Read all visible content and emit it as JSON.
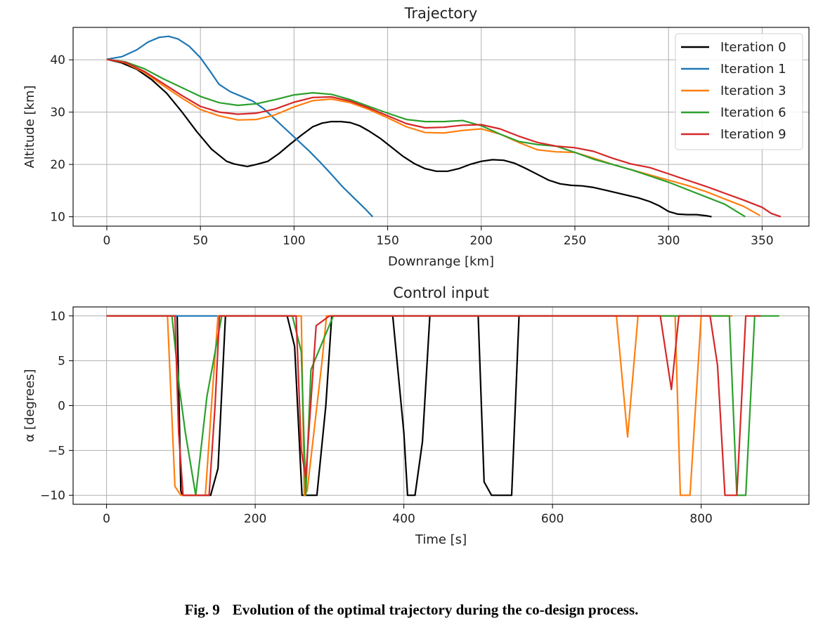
{
  "chart_data": [
    {
      "type": "line",
      "title": "Trajectory",
      "xlabel": "Downrange [km]",
      "ylabel": "Altitude [km]",
      "xlim": [
        -18,
        375
      ],
      "ylim": [
        8.2,
        46.2
      ],
      "xticks": [
        0,
        50,
        100,
        150,
        200,
        250,
        300,
        350
      ],
      "yticks": [
        10,
        20,
        30,
        40
      ],
      "grid": true,
      "legend": "top-right",
      "series": [
        {
          "name": "Iteration 0",
          "color": "#000000",
          "x": [
            0,
            8,
            16,
            24,
            32,
            40,
            48,
            56,
            64,
            68,
            75,
            80,
            86,
            92,
            98,
            104,
            110,
            115,
            120,
            125,
            130,
            135,
            140,
            146,
            152,
            158,
            164,
            170,
            176,
            182,
            188,
            194,
            200,
            206,
            212,
            218,
            224,
            230,
            236,
            242,
            248,
            254,
            260,
            266,
            272,
            278,
            284,
            290,
            295,
            300,
            305,
            310,
            315,
            320,
            323
          ],
          "y": [
            40.1,
            39.4,
            38.2,
            36.2,
            33.6,
            30.1,
            26.3,
            22.9,
            20.6,
            20.1,
            19.6,
            20.0,
            20.6,
            22.1,
            23.9,
            25.6,
            27.2,
            27.9,
            28.2,
            28.2,
            28.0,
            27.4,
            26.4,
            25.0,
            23.3,
            21.6,
            20.2,
            19.2,
            18.7,
            18.7,
            19.2,
            20.0,
            20.6,
            20.9,
            20.8,
            20.2,
            19.2,
            18.1,
            17.0,
            16.3,
            16.0,
            15.9,
            15.6,
            15.1,
            14.6,
            14.1,
            13.6,
            12.9,
            12.1,
            11.0,
            10.5,
            10.4,
            10.4,
            10.2,
            10.0
          ]
        },
        {
          "name": "Iteration 1",
          "color": "#1f77b4",
          "x": [
            0,
            8,
            16,
            22,
            28,
            33,
            38,
            44,
            50,
            55,
            60,
            66,
            72,
            78,
            84,
            90,
            96,
            102,
            108,
            114,
            120,
            126,
            132,
            138,
            142
          ],
          "y": [
            40.1,
            40.6,
            41.9,
            43.4,
            44.3,
            44.5,
            44.0,
            42.6,
            40.4,
            37.9,
            35.3,
            33.9,
            33.0,
            32.1,
            30.6,
            28.6,
            26.6,
            24.6,
            22.6,
            20.4,
            18.1,
            15.7,
            13.6,
            11.5,
            10.0
          ]
        },
        {
          "name": "Iteration 3",
          "color": "#ff7f0e",
          "x": [
            0,
            10,
            20,
            30,
            40,
            50,
            60,
            70,
            80,
            90,
            100,
            110,
            120,
            130,
            140,
            150,
            160,
            170,
            180,
            190,
            200,
            210,
            220,
            230,
            240,
            250,
            260,
            270,
            280,
            290,
            300,
            310,
            320,
            330,
            340,
            349
          ],
          "y": [
            40.1,
            39.4,
            37.6,
            35.1,
            32.7,
            30.5,
            29.3,
            28.5,
            28.6,
            29.5,
            31.0,
            32.2,
            32.5,
            31.8,
            30.5,
            28.9,
            27.2,
            26.1,
            26.0,
            26.5,
            26.8,
            25.8,
            24.2,
            22.8,
            22.4,
            22.3,
            21.2,
            20.0,
            19.0,
            18.0,
            17.0,
            16.0,
            14.8,
            13.4,
            12.0,
            10.2
          ]
        },
        {
          "name": "Iteration 6",
          "color": "#2ca02c",
          "x": [
            0,
            10,
            20,
            30,
            40,
            50,
            60,
            70,
            80,
            90,
            100,
            110,
            120,
            130,
            140,
            150,
            160,
            170,
            180,
            190,
            200,
            210,
            220,
            230,
            240,
            250,
            260,
            270,
            280,
            290,
            300,
            310,
            320,
            330,
            341
          ],
          "y": [
            40.1,
            39.6,
            38.3,
            36.4,
            34.7,
            33.0,
            31.8,
            31.3,
            31.6,
            32.4,
            33.3,
            33.7,
            33.4,
            32.4,
            31.1,
            29.8,
            28.6,
            28.2,
            28.2,
            28.4,
            27.4,
            25.8,
            24.4,
            23.8,
            23.5,
            22.3,
            21.0,
            20.0,
            19.0,
            17.8,
            16.6,
            15.2,
            13.8,
            12.4,
            10.0
          ]
        },
        {
          "name": "Iteration 9",
          "color": "#d62728",
          "x": [
            0,
            10,
            20,
            30,
            40,
            50,
            60,
            70,
            80,
            90,
            100,
            110,
            120,
            130,
            140,
            150,
            160,
            170,
            180,
            190,
            200,
            210,
            220,
            230,
            240,
            250,
            260,
            270,
            280,
            290,
            300,
            310,
            320,
            330,
            340,
            350,
            355,
            360
          ],
          "y": [
            40.1,
            39.5,
            37.8,
            35.5,
            33.2,
            31.1,
            30.0,
            29.6,
            29.8,
            30.6,
            31.9,
            32.8,
            32.9,
            32.1,
            30.8,
            29.3,
            27.8,
            27.0,
            27.1,
            27.5,
            27.6,
            26.8,
            25.4,
            24.2,
            23.5,
            23.2,
            22.5,
            21.2,
            20.1,
            19.4,
            18.2,
            17.0,
            15.8,
            14.5,
            13.2,
            11.8,
            10.6,
            10.0
          ]
        }
      ]
    },
    {
      "type": "line",
      "title": "Control input",
      "xlabel": "Time [s]",
      "ylabel": "α [degrees]",
      "xlim": [
        -45,
        945
      ],
      "ylim": [
        -11,
        11
      ],
      "xticks": [
        0,
        200,
        400,
        600,
        800
      ],
      "yticks": [
        -10,
        -5,
        0,
        5,
        10
      ],
      "ytick_labels": [
        "−10",
        "−5",
        "0",
        "5",
        "10"
      ],
      "grid": true,
      "series": [
        {
          "name": "Iteration 0",
          "color": "#000000",
          "x": [
            0,
            95,
            100,
            102,
            140,
            150,
            160,
            165,
            243,
            253,
            263,
            265,
            283,
            295,
            303,
            385,
            400,
            405,
            415,
            425,
            435,
            500,
            508,
            518,
            545,
            555,
            560
          ],
          "y": [
            10,
            10,
            -9.5,
            -10,
            -10,
            -7,
            10,
            10,
            10,
            6.6,
            -10,
            -10,
            -10,
            0,
            10,
            10,
            -3,
            -10,
            -10,
            -4,
            10,
            10,
            -8.5,
            -10,
            -10,
            10,
            10
          ]
        },
        {
          "name": "Iteration 1",
          "color": "#1f77b4",
          "x": [
            0,
            160
          ],
          "y": [
            10,
            10
          ]
        },
        {
          "name": "Iteration 3",
          "color": "#ff7f0e",
          "x": [
            0,
            82,
            92,
            100,
            103,
            133,
            142,
            150,
            262,
            266,
            270,
            290,
            296,
            686,
            701,
            715,
            765,
            772,
            785,
            800,
            842
          ],
          "y": [
            10,
            10,
            -9,
            -10,
            -10,
            -10,
            1,
            10,
            10,
            -10,
            -9.5,
            5,
            10,
            10,
            -3.5,
            10,
            10,
            -10,
            -10,
            10,
            10
          ]
        },
        {
          "name": "Iteration 6",
          "color": "#2ca02c",
          "x": [
            0,
            88,
            98,
            106,
            120,
            135,
            155,
            250,
            262,
            268,
            275,
            305,
            838,
            848,
            860,
            872,
            905
          ],
          "y": [
            10,
            10,
            2,
            -3,
            -10,
            1,
            10,
            10,
            6,
            -10,
            4,
            10,
            10,
            -10,
            -10,
            10,
            10
          ]
        },
        {
          "name": "Iteration 9",
          "color": "#d62728",
          "x": [
            0,
            92,
            97,
            103,
            108,
            138,
            146,
            152,
            255,
            262,
            268,
            282,
            300,
            745,
            760,
            770,
            780,
            800,
            812,
            822,
            832,
            848,
            860,
            870,
            880
          ],
          "y": [
            10,
            10,
            -3,
            -10,
            -10,
            -10,
            0,
            10,
            10,
            -5,
            -8,
            8.9,
            10,
            10,
            1.8,
            10,
            10,
            10,
            10,
            4.5,
            -10,
            -10,
            10,
            10,
            10
          ]
        }
      ]
    }
  ],
  "caption": {
    "number": "Fig. 9",
    "text": "Evolution of the optimal trajectory during the co-design process."
  }
}
